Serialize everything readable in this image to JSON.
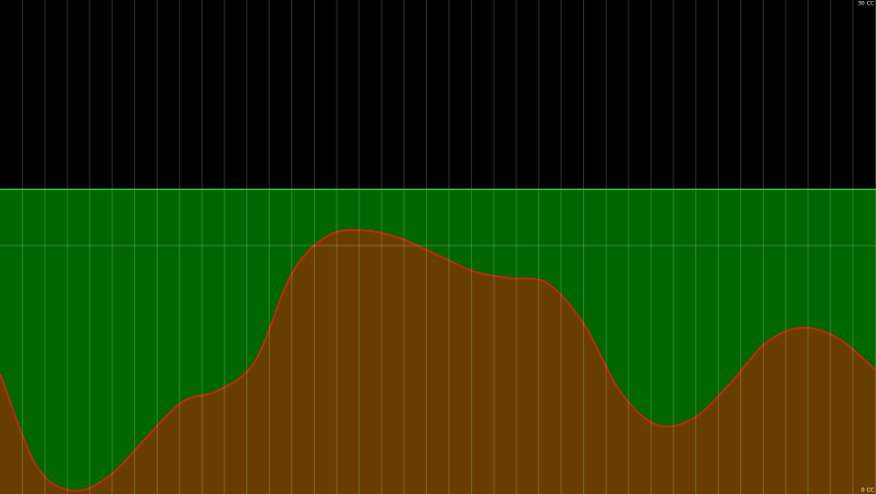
{
  "chart_data": {
    "type": "area",
    "values": [
      7.3,
      1.7,
      0.2,
      1.1,
      3.4,
      5.6,
      6.3,
      8.1,
      13.4,
      15.7,
      16.0,
      15.5,
      14.5,
      13.5,
      13.1,
      12.8,
      10.3,
      6.2,
      4.2,
      4.6,
      6.7,
      9.2,
      10.1,
      9.4,
      7.5
    ],
    "color": "#c8280a",
    "fill": "#673d00",
    "level": 18.5,
    "level_color": "#006600",
    "ylim": [
      0,
      30
    ],
    "yticks": [
      {
        "value": 0,
        "label": "0 CC"
      },
      {
        "value": 30,
        "label": "30 CC"
      }
    ]
  }
}
